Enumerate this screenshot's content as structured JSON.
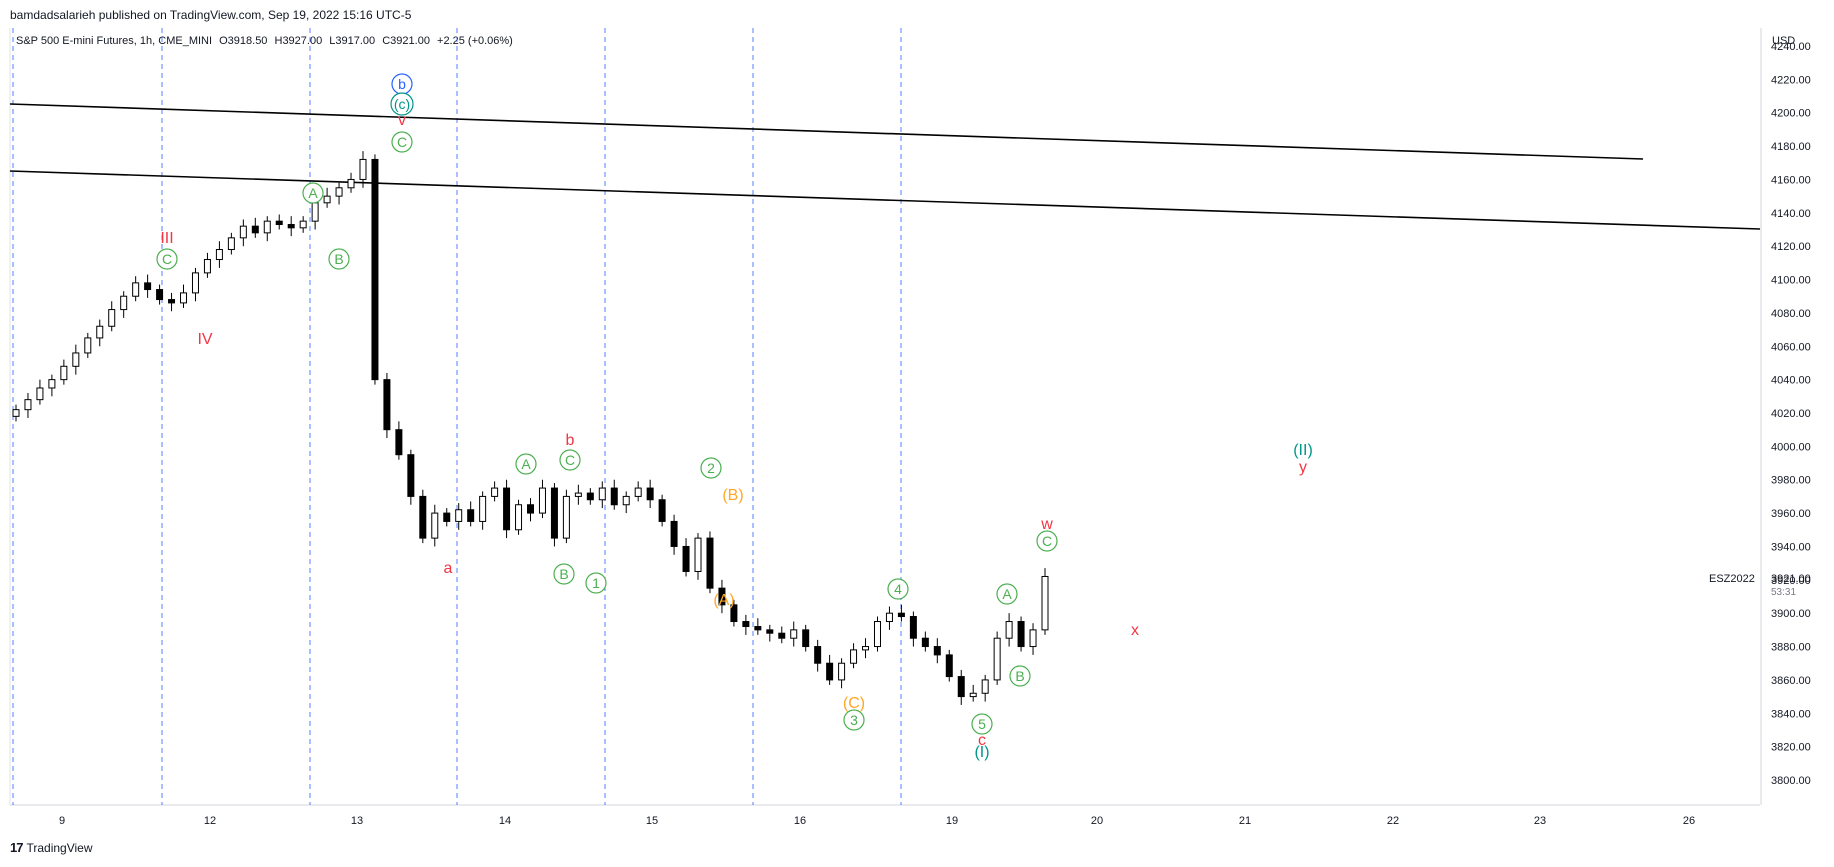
{
  "header": {
    "published": "bamdadsalarieh published on TradingView.com, Sep 19, 2022 15:16 UTC-5"
  },
  "symbol_line": {
    "name": "S&P 500 E-mini Futures, 1h, CME_MINI",
    "open": "O3918.50",
    "high": "H3927.00",
    "low": "L3917.00",
    "close": "C3921.00",
    "change": "+2.25 (+0.06%)"
  },
  "axis": {
    "currency": "USD",
    "ticker_label": "ESZ2022",
    "last_price": "3921.00",
    "countdown": "53:31"
  },
  "footer": {
    "brand": "TradingView",
    "logo_icon": "tradingview-logo-icon"
  },
  "colors": {
    "candle": "#000000",
    "grid_line": "#2962ff",
    "red": "#f23645",
    "green": "#4caf50",
    "orange": "#ffa726",
    "blue": "#2962ff",
    "teal": "#009688"
  },
  "chart_data": {
    "type": "candlestick",
    "ylim": [
      3790,
      4245
    ],
    "y_ticks": [
      "3800.00",
      "3820.00",
      "3840.00",
      "3860.00",
      "3880.00",
      "3900.00",
      "3920.00",
      "3940.00",
      "3960.00",
      "3980.00",
      "4000.00",
      "4020.00",
      "4040.00",
      "4060.00",
      "4080.00",
      "4100.00",
      "4120.00",
      "4140.00",
      "4160.00",
      "4180.00",
      "4200.00",
      "4220.00",
      "4240.00"
    ],
    "x_ticks": [
      "9",
      "12",
      "13",
      "14",
      "15",
      "16",
      "19",
      "20",
      "21",
      "22",
      "23",
      "26"
    ],
    "close_path": [
      4022,
      4028,
      4035,
      4040,
      4048,
      4056,
      4065,
      4072,
      4082,
      4090,
      4098,
      4094,
      4088,
      4086,
      4092,
      4104,
      4112,
      4118,
      4125,
      4132,
      4128,
      4135,
      4133,
      4131,
      4135,
      4146,
      4150,
      4155,
      4160,
      4172,
      4040,
      4010,
      3995,
      3970,
      3945,
      3960,
      3955,
      3962,
      3955,
      3970,
      3975,
      3950,
      3965,
      3960,
      3975,
      3945,
      3970,
      3972,
      3968,
      3975,
      3965,
      3970,
      3975,
      3968,
      3955,
      3940,
      3925,
      3945,
      3915,
      3905,
      3895,
      3892,
      3890,
      3888,
      3885,
      3890,
      3880,
      3870,
      3860,
      3870,
      3878,
      3880,
      3895,
      3900,
      3898,
      3885,
      3880,
      3875,
      3862,
      3850,
      3852,
      3860,
      3885,
      3895,
      3880,
      3890,
      3922
    ],
    "trendlines": [
      {
        "name": "upper",
        "points": [
          [
            "2022-09-08",
            4209
          ],
          [
            "2022-09-23",
            4176
          ]
        ]
      },
      {
        "name": "lower",
        "points": [
          [
            "2022-09-08",
            4170
          ],
          [
            "2022-09-26",
            4133
          ]
        ]
      }
    ],
    "vertical_markers": [
      "9 late",
      "12 late",
      "13 late",
      "14 late",
      "15 late",
      "16 late"
    ],
    "wave_labels": [
      {
        "text": "b",
        "color": "blue",
        "circled": true,
        "date_index": 29,
        "price": 4230
      },
      {
        "text": "(c)",
        "color": "teal",
        "circled": true,
        "date_index": 29,
        "price": 4213
      },
      {
        "text": "v",
        "color": "red",
        "circled": false,
        "date_index": 29,
        "price": 4202
      },
      {
        "text": "C",
        "color": "green",
        "circled": true,
        "date_index": 29,
        "price": 4187
      },
      {
        "text": "A",
        "color": "green",
        "circled": true,
        "date_index": 22,
        "price": 4160
      },
      {
        "text": "B",
        "color": "green",
        "circled": true,
        "date_index": 24,
        "price": 4123
      },
      {
        "text": "III",
        "color": "red",
        "circled": false,
        "date_index": 11,
        "price": 4131
      },
      {
        "text": "C",
        "color": "green",
        "circled": true,
        "date_index": 11,
        "price": 4116
      },
      {
        "text": "IV",
        "color": "red",
        "circled": false,
        "date_index": 14,
        "price": 4070
      },
      {
        "text": "a",
        "color": "red",
        "circled": false,
        "date_index": 33,
        "price": 3933
      },
      {
        "text": "A",
        "color": "green",
        "circled": true,
        "date_index": 39,
        "price": 3985
      },
      {
        "text": "C",
        "color": "green",
        "circled": true,
        "date_index": 42,
        "price": 3987
      },
      {
        "text": "b",
        "color": "red",
        "circled": false,
        "date_index": 42,
        "price": 4003
      },
      {
        "text": "B",
        "color": "green",
        "circled": true,
        "date_index": 42,
        "price": 3931
      },
      {
        "text": "1",
        "color": "green",
        "circled": true,
        "date_index": 45,
        "price": 3926
      },
      {
        "text": "2",
        "color": "green",
        "circled": true,
        "date_index": 53,
        "price": 3982
      },
      {
        "text": "(B)",
        "color": "orange",
        "circled": false,
        "date_index": 55,
        "price": 3963
      },
      {
        "text": "(A)",
        "color": "orange",
        "circled": false,
        "date_index": 54,
        "price": 3917
      },
      {
        "text": "(C)",
        "color": "orange",
        "circled": false,
        "date_index": 64,
        "price": 3843
      },
      {
        "text": "3",
        "color": "green",
        "circled": true,
        "date_index": 64,
        "price": 3833
      },
      {
        "text": "4",
        "color": "green",
        "circled": true,
        "date_index": 67,
        "price": 3915
      },
      {
        "text": "5",
        "color": "green",
        "circled": true,
        "date_index": 74,
        "price": 3835
      },
      {
        "text": "c",
        "color": "red",
        "circled": false,
        "date_index": 74,
        "price": 3824
      },
      {
        "text": "(I)",
        "color": "teal",
        "circled": false,
        "date_index": 74,
        "price": 3817
      },
      {
        "text": "A",
        "color": "green",
        "circled": true,
        "date_index": 77,
        "price": 3911
      },
      {
        "text": "B",
        "color": "green",
        "circled": true,
        "date_index": 78,
        "price": 3859
      },
      {
        "text": "C",
        "color": "green",
        "circled": true,
        "date_index": 80,
        "price": 3944
      },
      {
        "text": "w",
        "color": "red",
        "circled": false,
        "date_index": 80,
        "price": 3957
      },
      {
        "text": "x",
        "color": "red",
        "circled": false,
        "date_index": 87,
        "price": 3883
      },
      {
        "text": "(II)",
        "color": "teal",
        "circled": false,
        "date_index": 101,
        "price": 3999
      },
      {
        "text": "y",
        "color": "red",
        "circled": false,
        "date_index": 101,
        "price": 3990
      }
    ]
  }
}
